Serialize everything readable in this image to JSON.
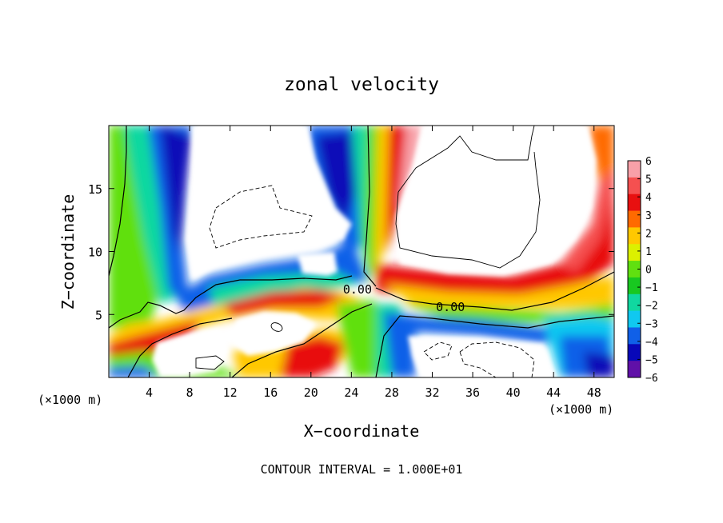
{
  "chart_data": {
    "type": "heatmap",
    "title": "zonal velocity",
    "xlabel": "X−coordinate",
    "ylabel": "Z−coordinate",
    "x_unit_left": "(×1000 m)",
    "x_unit_right": "(×1000 m)",
    "xlim": [
      0,
      50
    ],
    "ylim": [
      0,
      20
    ],
    "x_ticks": [
      4,
      8,
      12,
      16,
      20,
      24,
      28,
      32,
      36,
      40,
      44,
      48
    ],
    "y_ticks": [
      5,
      10,
      15
    ],
    "colorbar": {
      "range": [
        -6,
        6
      ],
      "ticks": [
        "6",
        "5",
        "4",
        "3",
        "2",
        "1",
        "0",
        "−1",
        "−2",
        "−3",
        "−4",
        "−5",
        "−6"
      ],
      "colors": [
        "#f8a0a8",
        "#f55050",
        "#e81010",
        "#ff6a00",
        "#ffc800",
        "#dcf000",
        "#60e010",
        "#18c820",
        "#10d8a0",
        "#10c8f0",
        "#1060e8",
        "#0808b8",
        "#6010a8"
      ]
    },
    "contour_labels": [
      {
        "text": "0.00",
        "x": 24.6,
        "y": 7.0
      },
      {
        "text": "0.00",
        "x": 33.8,
        "y": 5.6
      }
    ],
    "footer": "CONTOUR INTERVAL = 1.000E+01",
    "grid": false
  }
}
